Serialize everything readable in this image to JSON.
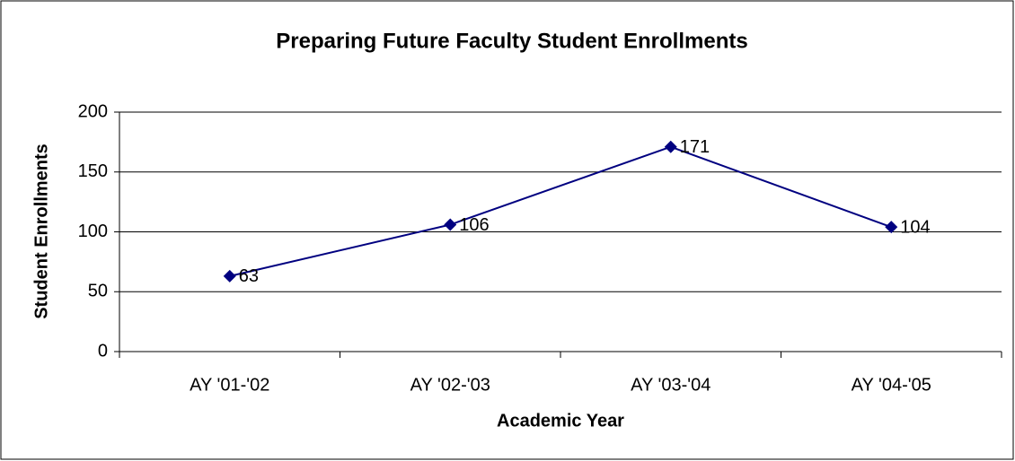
{
  "chart_data": {
    "type": "line",
    "title": "Preparing Future Faculty Student Enrollments",
    "x_label": "Academic Year",
    "y_label": "Student Enrollments",
    "categories": [
      "AY '01-'02",
      "AY '02-'03",
      "AY '03-'04",
      "AY '04-'05"
    ],
    "series": [
      {
        "name": "Student Enrollments",
        "color": "#000080",
        "values": [
          63,
          106,
          171,
          104
        ]
      }
    ],
    "ylim": [
      0,
      200
    ],
    "yticks": [
      0,
      50,
      100,
      150,
      200
    ],
    "grid": true,
    "data_labels": true
  }
}
